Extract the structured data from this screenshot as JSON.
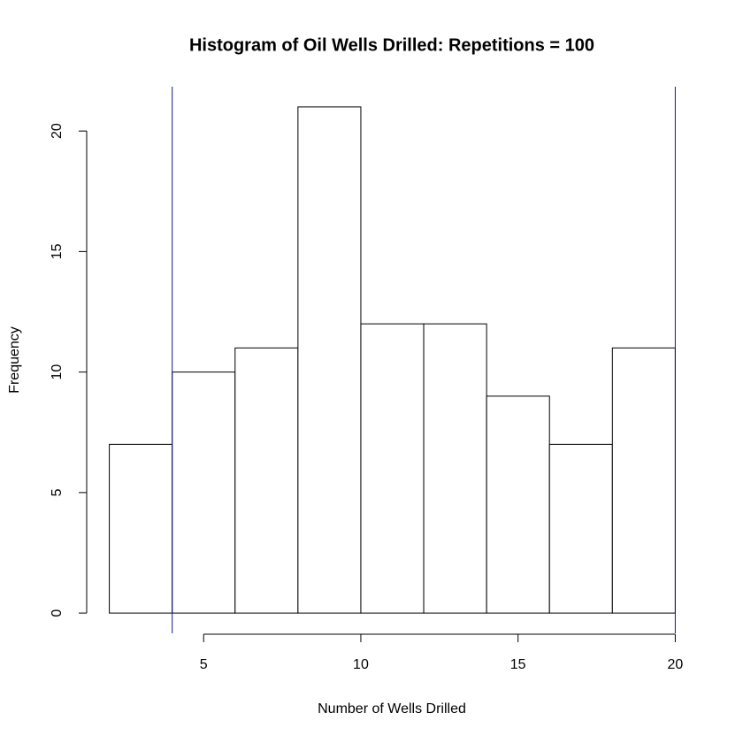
{
  "chart_data": {
    "type": "histogram",
    "title": "Histogram of Oil Wells Drilled: Repetitions = 100",
    "xlabel": "Number of Wells Drilled",
    "ylabel": "Frequency",
    "bins": [
      2,
      4,
      6,
      8,
      10,
      12,
      14,
      16,
      18,
      20
    ],
    "counts": [
      7,
      10,
      11,
      21,
      12,
      12,
      9,
      7,
      11
    ],
    "xlim": [
      1.28,
      20.72
    ],
    "ylim": [
      -0.84,
      21.84
    ],
    "xticks": [
      5,
      10,
      15,
      20
    ],
    "yticks": [
      0,
      5,
      10,
      15,
      20
    ],
    "vlines": [
      4,
      20
    ],
    "vline_color": "#1a1a8c"
  }
}
